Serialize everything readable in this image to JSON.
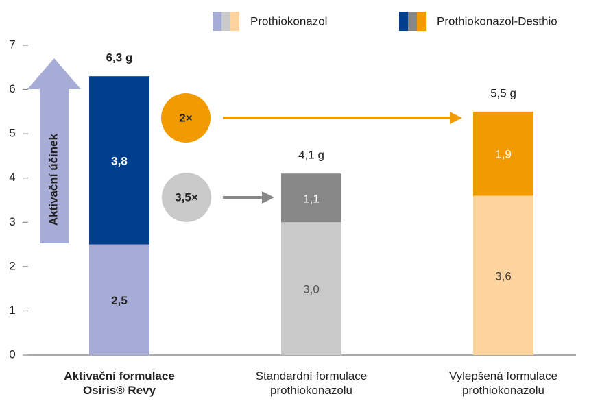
{
  "chart_data": {
    "type": "stacked_bar",
    "categories": [
      "Aktivační formulace\nOsiris® Revy",
      "Standardní formulace\nprothiokonazolu",
      "Vylepšená formulace\nprothiokonazolu"
    ],
    "series": [
      {
        "name": "Prothiokonazol",
        "colors": [
          "#a7acd7",
          "#c9c9c9",
          "#fdd49e"
        ],
        "values": [
          2.5,
          3.0,
          3.6
        ],
        "value_labels": [
          "2,5",
          "3,0",
          "3,6"
        ]
      },
      {
        "name": "Prothiokonazol-Desthio",
        "colors": [
          "#003f8e",
          "#878787",
          "#f29b00"
        ],
        "values": [
          3.8,
          1.1,
          1.9
        ],
        "value_labels": [
          "3,8",
          "1,1",
          "1,9"
        ]
      }
    ],
    "totals": [
      6.3,
      4.1,
      5.5
    ],
    "total_labels": [
      "6,3 g",
      "4,1 g",
      "5,5 g"
    ],
    "ylim": [
      0,
      7
    ],
    "yticks": [
      0,
      1,
      2,
      3,
      4,
      5,
      6,
      7
    ],
    "annotations": [
      "Aktivační účinek",
      "2×",
      "3,5×"
    ]
  }
}
